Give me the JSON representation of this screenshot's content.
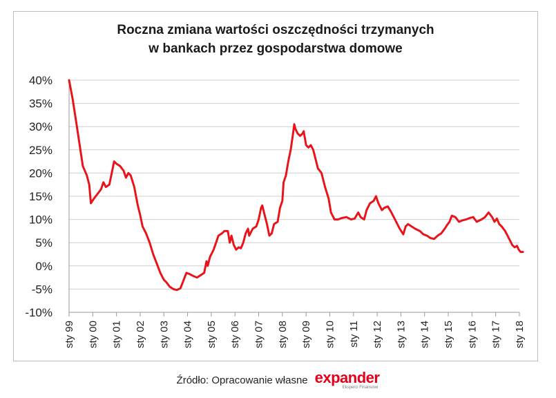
{
  "chart_data": {
    "type": "line",
    "title_lines": [
      "Roczna zmiana wartości oszczędności trzymanych",
      "w bankach przez gospodarstwa domowe"
    ],
    "y_ticks": [
      "40%",
      "35%",
      "30%",
      "25%",
      "20%",
      "15%",
      "10%",
      "5%",
      "0%",
      "-5%",
      "-10%"
    ],
    "ylim": [
      -10,
      40
    ],
    "x_ticks": [
      "sty 99",
      "sty 00",
      "sty 01",
      "sty 02",
      "sty 03",
      "sty 04",
      "sty 05",
      "sty 06",
      "sty 07",
      "sty 08",
      "sty 09",
      "sty 10",
      "sty 11",
      "sty 12",
      "sty 13",
      "sty 14",
      "sty 15",
      "sty 16",
      "sty 17",
      "sty 18"
    ],
    "xlim": [
      1999.0,
      2018.0
    ],
    "grid": "horizontal",
    "legend": "none",
    "series": [
      {
        "color": "#e8141a",
        "points": [
          [
            1999.0,
            40.0
          ],
          [
            1999.15,
            36.0
          ],
          [
            1999.3,
            31.0
          ],
          [
            1999.45,
            26.0
          ],
          [
            1999.58,
            21.5
          ],
          [
            1999.75,
            19.5
          ],
          [
            1999.85,
            17.5
          ],
          [
            1999.92,
            13.5
          ],
          [
            2000.05,
            14.5
          ],
          [
            2000.2,
            15.5
          ],
          [
            2000.35,
            16.5
          ],
          [
            2000.45,
            18.0
          ],
          [
            2000.55,
            17.0
          ],
          [
            2000.7,
            17.5
          ],
          [
            2000.8,
            20.0
          ],
          [
            2000.9,
            22.5
          ],
          [
            2001.0,
            22.0
          ],
          [
            2001.15,
            21.5
          ],
          [
            2001.3,
            20.5
          ],
          [
            2001.4,
            19.0
          ],
          [
            2001.5,
            20.0
          ],
          [
            2001.6,
            19.5
          ],
          [
            2001.75,
            17.0
          ],
          [
            2001.9,
            13.0
          ],
          [
            2002.0,
            11.0
          ],
          [
            2002.1,
            8.5
          ],
          [
            2002.25,
            7.0
          ],
          [
            2002.4,
            5.0
          ],
          [
            2002.55,
            2.5
          ],
          [
            2002.7,
            0.5
          ],
          [
            2002.85,
            -1.5
          ],
          [
            2003.0,
            -3.0
          ],
          [
            2003.1,
            -3.5
          ],
          [
            2003.25,
            -4.5
          ],
          [
            2003.4,
            -5.0
          ],
          [
            2003.55,
            -5.2
          ],
          [
            2003.7,
            -4.8
          ],
          [
            2003.8,
            -3.5
          ],
          [
            2003.95,
            -1.5
          ],
          [
            2004.1,
            -1.8
          ],
          [
            2004.25,
            -2.2
          ],
          [
            2004.4,
            -2.5
          ],
          [
            2004.55,
            -2.0
          ],
          [
            2004.7,
            -1.5
          ],
          [
            2004.8,
            1.0
          ],
          [
            2004.85,
            0.0
          ],
          [
            2004.95,
            2.0
          ],
          [
            2005.1,
            3.5
          ],
          [
            2005.2,
            5.0
          ],
          [
            2005.3,
            6.5
          ],
          [
            2005.45,
            7.0
          ],
          [
            2005.55,
            7.5
          ],
          [
            2005.7,
            7.5
          ],
          [
            2005.78,
            5.0
          ],
          [
            2005.85,
            6.5
          ],
          [
            2005.95,
            4.5
          ],
          [
            2006.05,
            3.5
          ],
          [
            2006.15,
            4.0
          ],
          [
            2006.25,
            3.8
          ],
          [
            2006.35,
            5.0
          ],
          [
            2006.45,
            7.0
          ],
          [
            2006.55,
            8.0
          ],
          [
            2006.6,
            6.5
          ],
          [
            2006.75,
            8.0
          ],
          [
            2006.9,
            8.5
          ],
          [
            2007.0,
            10.0
          ],
          [
            2007.1,
            12.5
          ],
          [
            2007.15,
            13.0
          ],
          [
            2007.25,
            11.0
          ],
          [
            2007.35,
            9.0
          ],
          [
            2007.45,
            6.5
          ],
          [
            2007.55,
            7.0
          ],
          [
            2007.65,
            9.0
          ],
          [
            2007.8,
            9.5
          ],
          [
            2007.9,
            12.5
          ],
          [
            2008.0,
            14.0
          ],
          [
            2008.05,
            18.0
          ],
          [
            2008.15,
            19.5
          ],
          [
            2008.25,
            22.5
          ],
          [
            2008.35,
            25.0
          ],
          [
            2008.45,
            28.5
          ],
          [
            2008.5,
            30.5
          ],
          [
            2008.55,
            29.5
          ],
          [
            2008.65,
            28.5
          ],
          [
            2008.75,
            28.0
          ],
          [
            2008.85,
            28.5
          ],
          [
            2008.9,
            29.0
          ],
          [
            2009.0,
            26.0
          ],
          [
            2009.1,
            25.5
          ],
          [
            2009.2,
            26.0
          ],
          [
            2009.3,
            25.0
          ],
          [
            2009.4,
            23.0
          ],
          [
            2009.5,
            21.0
          ],
          [
            2009.65,
            20.0
          ],
          [
            2009.8,
            17.0
          ],
          [
            2009.95,
            14.5
          ],
          [
            2010.05,
            11.5
          ],
          [
            2010.2,
            10.0
          ],
          [
            2010.35,
            10.0
          ],
          [
            2010.5,
            10.3
          ],
          [
            2010.7,
            10.5
          ],
          [
            2010.9,
            10.0
          ],
          [
            2011.05,
            10.2
          ],
          [
            2011.2,
            11.5
          ],
          [
            2011.3,
            10.5
          ],
          [
            2011.45,
            10.0
          ],
          [
            2011.55,
            12.0
          ],
          [
            2011.7,
            13.5
          ],
          [
            2011.85,
            14.0
          ],
          [
            2011.95,
            15.0
          ],
          [
            2012.05,
            13.5
          ],
          [
            2012.2,
            12.0
          ],
          [
            2012.3,
            12.5
          ],
          [
            2012.45,
            12.8
          ],
          [
            2012.6,
            11.5
          ],
          [
            2012.8,
            9.5
          ],
          [
            2012.95,
            8.0
          ],
          [
            2013.1,
            6.8
          ],
          [
            2013.2,
            8.5
          ],
          [
            2013.3,
            9.0
          ],
          [
            2013.45,
            8.5
          ],
          [
            2013.6,
            8.0
          ],
          [
            2013.8,
            7.5
          ],
          [
            2013.95,
            6.8
          ],
          [
            2014.1,
            6.5
          ],
          [
            2014.25,
            6.0
          ],
          [
            2014.4,
            5.8
          ],
          [
            2014.55,
            6.5
          ],
          [
            2014.7,
            7.0
          ],
          [
            2014.85,
            8.0
          ],
          [
            2014.95,
            8.8
          ],
          [
            2015.05,
            9.5
          ],
          [
            2015.15,
            10.8
          ],
          [
            2015.3,
            10.5
          ],
          [
            2015.45,
            9.5
          ],
          [
            2015.6,
            9.8
          ],
          [
            2015.75,
            10.0
          ],
          [
            2015.9,
            10.3
          ],
          [
            2016.05,
            10.5
          ],
          [
            2016.2,
            9.5
          ],
          [
            2016.4,
            10.0
          ],
          [
            2016.55,
            10.5
          ],
          [
            2016.7,
            11.5
          ],
          [
            2016.85,
            10.5
          ],
          [
            2016.95,
            9.5
          ],
          [
            2017.05,
            10.2
          ],
          [
            2017.15,
            9.0
          ],
          [
            2017.25,
            8.5
          ],
          [
            2017.4,
            7.5
          ],
          [
            2017.55,
            6.0
          ],
          [
            2017.7,
            4.5
          ],
          [
            2017.8,
            4.0
          ],
          [
            2017.9,
            4.3
          ],
          [
            2017.97,
            3.5
          ],
          [
            2018.05,
            3.0
          ],
          [
            2018.15,
            3.0
          ]
        ]
      }
    ]
  },
  "footer": {
    "source": "Źródło: Opracowanie własne",
    "logo_text": "expander",
    "logo_tagline": "Eksperci Finansowi"
  }
}
